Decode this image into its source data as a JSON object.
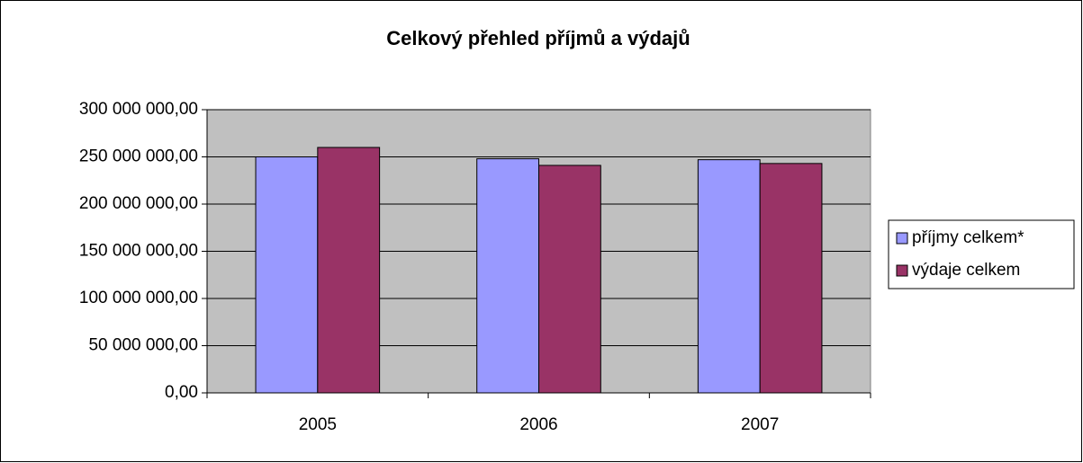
{
  "chart_data": {
    "type": "bar",
    "title": "Celkový přehled příjmů a výdajů",
    "categories": [
      "2005",
      "2006",
      "2007"
    ],
    "series": [
      {
        "name": "příjmy celkem*",
        "color": "#9999ff",
        "values": [
          250000000,
          248000000,
          247000000
        ]
      },
      {
        "name": "výdaje celkem",
        "color": "#993366",
        "values": [
          260000000,
          241000000,
          243000000
        ]
      }
    ],
    "ylim": [
      0,
      300000000
    ],
    "yticks": [
      {
        "value": 0,
        "label": "0,00"
      },
      {
        "value": 50000000,
        "label": "50 000 000,00"
      },
      {
        "value": 100000000,
        "label": "100 000 000,00"
      },
      {
        "value": 150000000,
        "label": "150 000 000,00"
      },
      {
        "value": 200000000,
        "label": "200 000 000,00"
      },
      {
        "value": 250000000,
        "label": "250 000 000,00"
      },
      {
        "value": 300000000,
        "label": "300 000 000,00"
      }
    ],
    "grid": true,
    "legend": "right",
    "plot_background": "#c0c0c0"
  }
}
